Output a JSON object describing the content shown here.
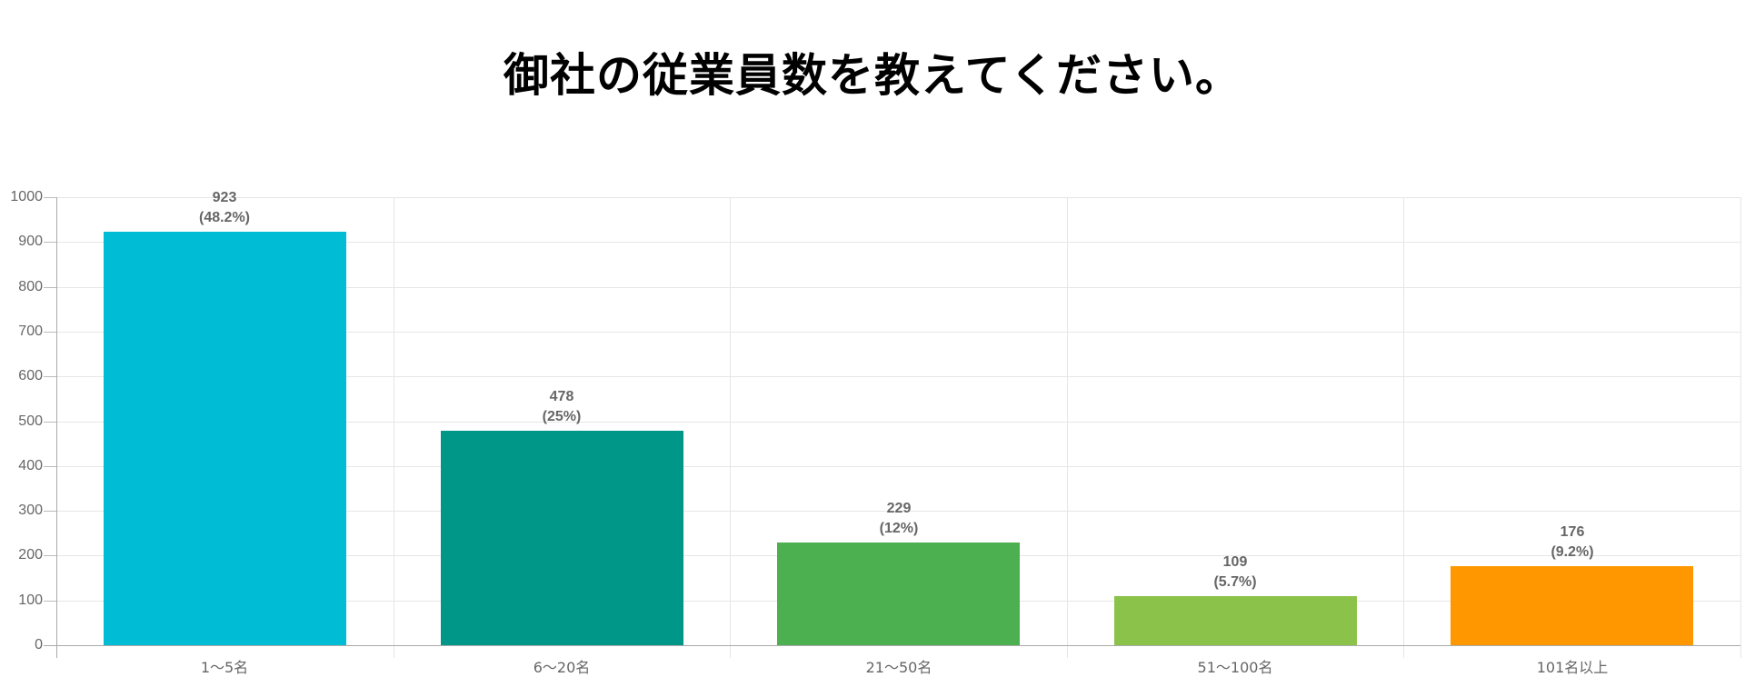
{
  "title": "御社の従業員数を教えてください。",
  "chart_data": {
    "type": "bar",
    "title": "御社の従業員数を教えてください。",
    "xlabel": "",
    "ylabel": "",
    "categories": [
      "1〜5名",
      "6〜20名",
      "21〜50名",
      "51〜100名",
      "101名以上"
    ],
    "values": [
      923,
      478,
      229,
      109,
      176
    ],
    "percentages": [
      "(48.2%)",
      "(25%)",
      "(12%)",
      "(5.7%)",
      "(9.2%)"
    ],
    "colors": [
      "#00BCD4",
      "#009688",
      "#4CAF50",
      "#8BC34A",
      "#FF9800"
    ],
    "ylim": [
      0,
      1000
    ],
    "yticks": [
      0,
      100,
      200,
      300,
      400,
      500,
      600,
      700,
      800,
      900,
      1000
    ],
    "grid": true,
    "legend": "none"
  },
  "labels": {
    "y": [
      "1000",
      "900",
      "800",
      "700",
      "600",
      "500",
      "400",
      "300",
      "200",
      "100",
      "0"
    ],
    "bars": [
      {
        "value": "923",
        "pct": "(48.2%)",
        "category": "1〜5名"
      },
      {
        "value": "478",
        "pct": "(25%)",
        "category": "6〜20名"
      },
      {
        "value": "229",
        "pct": "(12%)",
        "category": "21〜50名"
      },
      {
        "value": "109",
        "pct": "(5.7%)",
        "category": "51〜100名"
      },
      {
        "value": "176",
        "pct": "(9.2%)",
        "category": "101名以上"
      }
    ]
  }
}
